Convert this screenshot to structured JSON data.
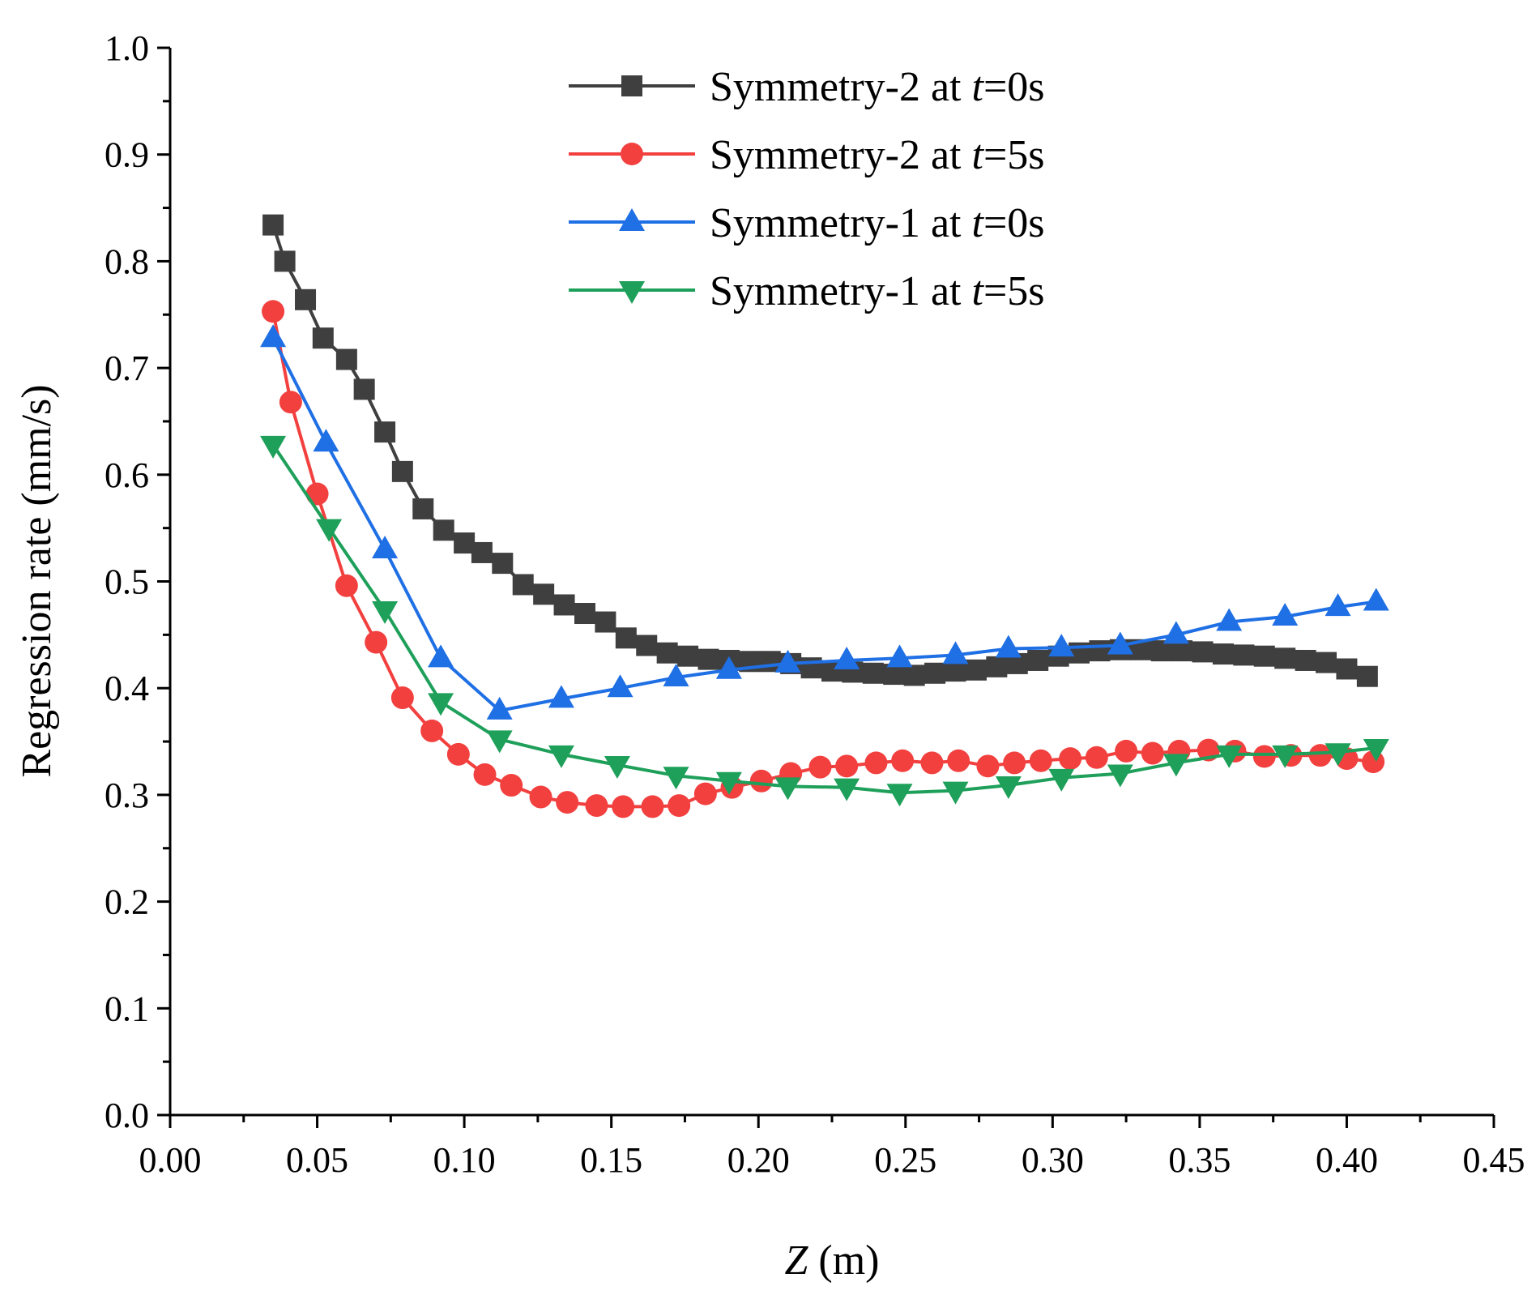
{
  "chart_data": {
    "type": "line",
    "title": "",
    "xlabel": {
      "italic": "Z",
      "rest": " (m)"
    },
    "ylabel": "Regression rate (mm/s)",
    "xlim": [
      0,
      0.45
    ],
    "ylim": [
      0,
      1.0
    ],
    "x_ticks": [
      "0.00",
      "0.05",
      "0.10",
      "0.15",
      "0.20",
      "0.25",
      "0.30",
      "0.35",
      "0.40",
      "0.45"
    ],
    "y_ticks": [
      "0.0",
      "0.1",
      "0.2",
      "0.3",
      "0.4",
      "0.5",
      "0.6",
      "0.7",
      "0.8",
      "0.9",
      "1.0"
    ],
    "legend_position": "top-right",
    "series": [
      {
        "name": "Symmetry-2 at t=0s",
        "legend_prefix": "Symmetry-2 at ",
        "legend_var": "t",
        "legend_suffix": "=0s",
        "color": "#3f3f3f",
        "marker": "square",
        "x": [
          0.035,
          0.039,
          0.046,
          0.052,
          0.06,
          0.066,
          0.073,
          0.079,
          0.086,
          0.093,
          0.1,
          0.106,
          0.113,
          0.12,
          0.127,
          0.134,
          0.141,
          0.148,
          0.155,
          0.162,
          0.169,
          0.176,
          0.183,
          0.19,
          0.197,
          0.204,
          0.211,
          0.218,
          0.225,
          0.232,
          0.239,
          0.246,
          0.253,
          0.26,
          0.267,
          0.274,
          0.281,
          0.288,
          0.295,
          0.302,
          0.309,
          0.316,
          0.323,
          0.33,
          0.337,
          0.344,
          0.351,
          0.358,
          0.365,
          0.372,
          0.379,
          0.386,
          0.393,
          0.4,
          0.407
        ],
        "values": [
          0.834,
          0.8,
          0.764,
          0.728,
          0.708,
          0.68,
          0.64,
          0.603,
          0.568,
          0.548,
          0.536,
          0.527,
          0.517,
          0.497,
          0.488,
          0.478,
          0.47,
          0.462,
          0.447,
          0.44,
          0.433,
          0.43,
          0.427,
          0.426,
          0.425,
          0.425,
          0.423,
          0.419,
          0.416,
          0.415,
          0.414,
          0.413,
          0.412,
          0.414,
          0.416,
          0.417,
          0.42,
          0.423,
          0.426,
          0.43,
          0.433,
          0.435,
          0.436,
          0.436,
          0.435,
          0.435,
          0.434,
          0.432,
          0.431,
          0.43,
          0.428,
          0.426,
          0.424,
          0.418,
          0.411
        ]
      },
      {
        "name": "Symmetry-2 at t=5s",
        "legend_prefix": "Symmetry-2 at ",
        "legend_var": "t",
        "legend_suffix": "=5s",
        "color": "#f2403f",
        "marker": "circle",
        "x": [
          0.035,
          0.041,
          0.05,
          0.06,
          0.07,
          0.079,
          0.089,
          0.098,
          0.107,
          0.116,
          0.126,
          0.135,
          0.145,
          0.154,
          0.164,
          0.173,
          0.182,
          0.191,
          0.201,
          0.211,
          0.221,
          0.23,
          0.24,
          0.249,
          0.259,
          0.268,
          0.278,
          0.287,
          0.296,
          0.306,
          0.315,
          0.325,
          0.334,
          0.343,
          0.353,
          0.362,
          0.372,
          0.381,
          0.391,
          0.4,
          0.409
        ],
        "values": [
          0.753,
          0.668,
          0.582,
          0.496,
          0.443,
          0.391,
          0.36,
          0.338,
          0.319,
          0.309,
          0.298,
          0.293,
          0.29,
          0.289,
          0.289,
          0.29,
          0.301,
          0.307,
          0.313,
          0.32,
          0.326,
          0.327,
          0.33,
          0.332,
          0.33,
          0.332,
          0.327,
          0.33,
          0.332,
          0.334,
          0.335,
          0.341,
          0.339,
          0.341,
          0.342,
          0.341,
          0.336,
          0.337,
          0.337,
          0.334,
          0.331
        ]
      },
      {
        "name": "Symmetry-1 at t=0s",
        "legend_prefix": "Symmetry-1 at ",
        "legend_var": "t",
        "legend_suffix": "=0s",
        "color": "#1f6fe5",
        "marker": "triangle-up",
        "x": [
          0.035,
          0.053,
          0.073,
          0.092,
          0.112,
          0.133,
          0.153,
          0.172,
          0.19,
          0.21,
          0.23,
          0.248,
          0.267,
          0.285,
          0.303,
          0.323,
          0.342,
          0.36,
          0.379,
          0.397,
          0.41
        ],
        "values": [
          0.728,
          0.63,
          0.53,
          0.428,
          0.379,
          0.39,
          0.4,
          0.41,
          0.417,
          0.423,
          0.426,
          0.428,
          0.431,
          0.437,
          0.438,
          0.44,
          0.45,
          0.462,
          0.467,
          0.476,
          0.481
        ]
      },
      {
        "name": "Symmetry-1 at t=5s",
        "legend_prefix": "Symmetry-1 at ",
        "legend_var": "t",
        "legend_suffix": "=5s",
        "color": "#1ea05a",
        "marker": "triangle-down",
        "x": [
          0.035,
          0.054,
          0.073,
          0.092,
          0.112,
          0.133,
          0.152,
          0.172,
          0.19,
          0.21,
          0.23,
          0.248,
          0.267,
          0.285,
          0.303,
          0.323,
          0.342,
          0.36,
          0.379,
          0.397,
          0.41
        ],
        "values": [
          0.628,
          0.55,
          0.473,
          0.387,
          0.352,
          0.338,
          0.328,
          0.318,
          0.313,
          0.308,
          0.307,
          0.302,
          0.304,
          0.309,
          0.316,
          0.32,
          0.33,
          0.338,
          0.338,
          0.34,
          0.344
        ]
      }
    ]
  }
}
